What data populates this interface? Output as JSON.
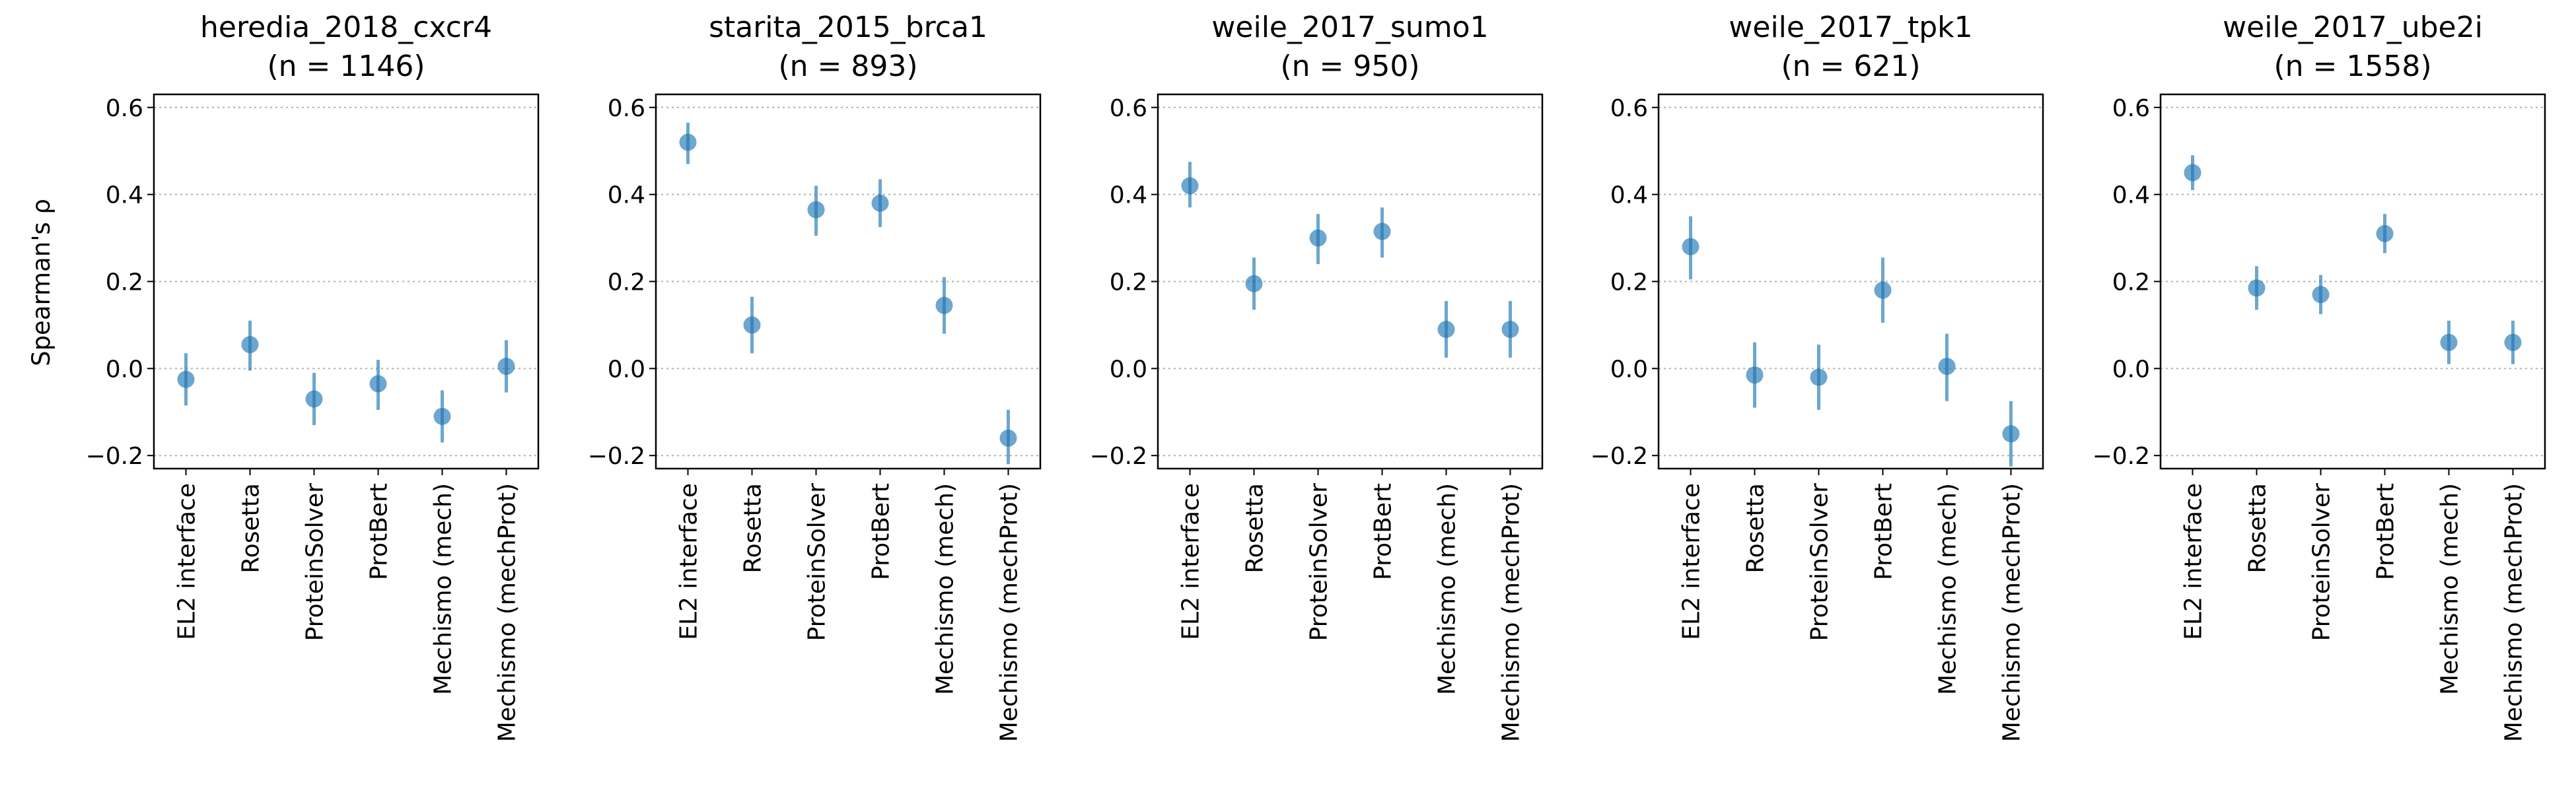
{
  "figure": {
    "ylabel": "Spearman's ρ",
    "colors": {
      "marker": "#1f77b4",
      "grid": "#b0b0b0",
      "axis": "#000000"
    }
  },
  "chart_data": [
    {
      "type": "scatter",
      "title": "heredia_2018_cxcr4",
      "subtitle": "(n = 1146)",
      "categories": [
        "EL2 interface",
        "Rosetta",
        "ProteinSolver",
        "ProtBert",
        "Mechismo (mech)",
        "Mechismo (mechProt)"
      ],
      "series": [
        {
          "values": [
            -0.025,
            0.055,
            -0.07,
            -0.035,
            -0.11,
            0.005
          ],
          "ci_low": [
            -0.085,
            -0.005,
            -0.13,
            -0.095,
            -0.17,
            -0.055
          ],
          "ci_high": [
            0.035,
            0.11,
            -0.01,
            0.02,
            -0.05,
            0.065
          ]
        }
      ],
      "yticks": [
        -0.2,
        0.0,
        0.2,
        0.4,
        0.6
      ],
      "ylim": [
        -0.23,
        0.63
      ],
      "grid": "horizontal-dotted"
    },
    {
      "type": "scatter",
      "title": "starita_2015_brca1",
      "subtitle": "(n = 893)",
      "categories": [
        "EL2 interface",
        "Rosetta",
        "ProteinSolver",
        "ProtBert",
        "Mechismo (mech)",
        "Mechismo (mechProt)"
      ],
      "series": [
        {
          "values": [
            0.52,
            0.1,
            0.365,
            0.38,
            0.145,
            -0.16
          ],
          "ci_low": [
            0.47,
            0.035,
            0.305,
            0.325,
            0.08,
            -0.22
          ],
          "ci_high": [
            0.565,
            0.165,
            0.42,
            0.435,
            0.21,
            -0.095
          ]
        }
      ],
      "yticks": [
        -0.2,
        0.0,
        0.2,
        0.4,
        0.6
      ],
      "ylim": [
        -0.23,
        0.63
      ],
      "grid": "horizontal-dotted"
    },
    {
      "type": "scatter",
      "title": "weile_2017_sumo1",
      "subtitle": "(n = 950)",
      "categories": [
        "EL2 interface",
        "Rosetta",
        "ProteinSolver",
        "ProtBert",
        "Mechismo (mech)",
        "Mechismo (mechProt)"
      ],
      "series": [
        {
          "values": [
            0.42,
            0.195,
            0.3,
            0.315,
            0.09,
            0.09
          ],
          "ci_low": [
            0.37,
            0.135,
            0.24,
            0.255,
            0.025,
            0.025
          ],
          "ci_high": [
            0.475,
            0.255,
            0.355,
            0.37,
            0.155,
            0.155
          ]
        }
      ],
      "yticks": [
        -0.2,
        0.0,
        0.2,
        0.4,
        0.6
      ],
      "ylim": [
        -0.23,
        0.63
      ],
      "grid": "horizontal-dotted"
    },
    {
      "type": "scatter",
      "title": "weile_2017_tpk1",
      "subtitle": "(n = 621)",
      "categories": [
        "EL2 interface",
        "Rosetta",
        "ProteinSolver",
        "ProtBert",
        "Mechismo (mech)",
        "Mechismo (mechProt)"
      ],
      "series": [
        {
          "values": [
            0.28,
            -0.015,
            -0.02,
            0.18,
            0.005,
            -0.15
          ],
          "ci_low": [
            0.205,
            -0.09,
            -0.095,
            0.105,
            -0.075,
            -0.225
          ],
          "ci_high": [
            0.35,
            0.06,
            0.055,
            0.255,
            0.08,
            -0.075
          ]
        }
      ],
      "yticks": [
        -0.2,
        0.0,
        0.2,
        0.4,
        0.6
      ],
      "ylim": [
        -0.23,
        0.63
      ],
      "grid": "horizontal-dotted"
    },
    {
      "type": "scatter",
      "title": "weile_2017_ube2i",
      "subtitle": "(n = 1558)",
      "categories": [
        "EL2 interface",
        "Rosetta",
        "ProteinSolver",
        "ProtBert",
        "Mechismo (mech)",
        "Mechismo (mechProt)"
      ],
      "series": [
        {
          "values": [
            0.45,
            0.185,
            0.17,
            0.31,
            0.06,
            0.06
          ],
          "ci_low": [
            0.41,
            0.135,
            0.125,
            0.265,
            0.01,
            0.01
          ],
          "ci_high": [
            0.49,
            0.235,
            0.215,
            0.355,
            0.11,
            0.11
          ]
        }
      ],
      "yticks": [
        -0.2,
        0.0,
        0.2,
        0.4,
        0.6
      ],
      "ylim": [
        -0.23,
        0.63
      ],
      "grid": "horizontal-dotted"
    }
  ]
}
